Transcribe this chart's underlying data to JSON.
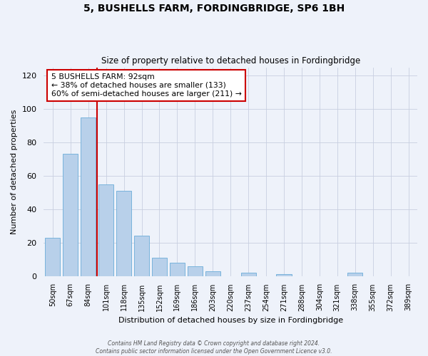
{
  "title": "5, BUSHELLS FARM, FORDINGBRIDGE, SP6 1BH",
  "subtitle": "Size of property relative to detached houses in Fordingbridge",
  "xlabel": "Distribution of detached houses by size in Fordingbridge",
  "ylabel": "Number of detached properties",
  "bar_labels": [
    "50sqm",
    "67sqm",
    "84sqm",
    "101sqm",
    "118sqm",
    "135sqm",
    "152sqm",
    "169sqm",
    "186sqm",
    "203sqm",
    "220sqm",
    "237sqm",
    "254sqm",
    "271sqm",
    "288sqm",
    "304sqm",
    "321sqm",
    "338sqm",
    "355sqm",
    "372sqm",
    "389sqm"
  ],
  "bar_values": [
    23,
    73,
    95,
    55,
    51,
    24,
    11,
    8,
    6,
    3,
    0,
    2,
    0,
    1,
    0,
    0,
    0,
    2,
    0,
    0,
    0
  ],
  "bar_color": "#b8d0ea",
  "bar_edge_color": "#6aacd8",
  "vline_color": "#cc0000",
  "ylim": [
    0,
    125
  ],
  "yticks": [
    0,
    20,
    40,
    60,
    80,
    100,
    120
  ],
  "annotation_title": "5 BUSHELLS FARM: 92sqm",
  "annotation_line1": "← 38% of detached houses are smaller (133)",
  "annotation_line2": "60% of semi-detached houses are larger (211) →",
  "footer1": "Contains HM Land Registry data © Crown copyright and database right 2024.",
  "footer2": "Contains public sector information licensed under the Open Government Licence v3.0.",
  "background_color": "#eef2fa"
}
